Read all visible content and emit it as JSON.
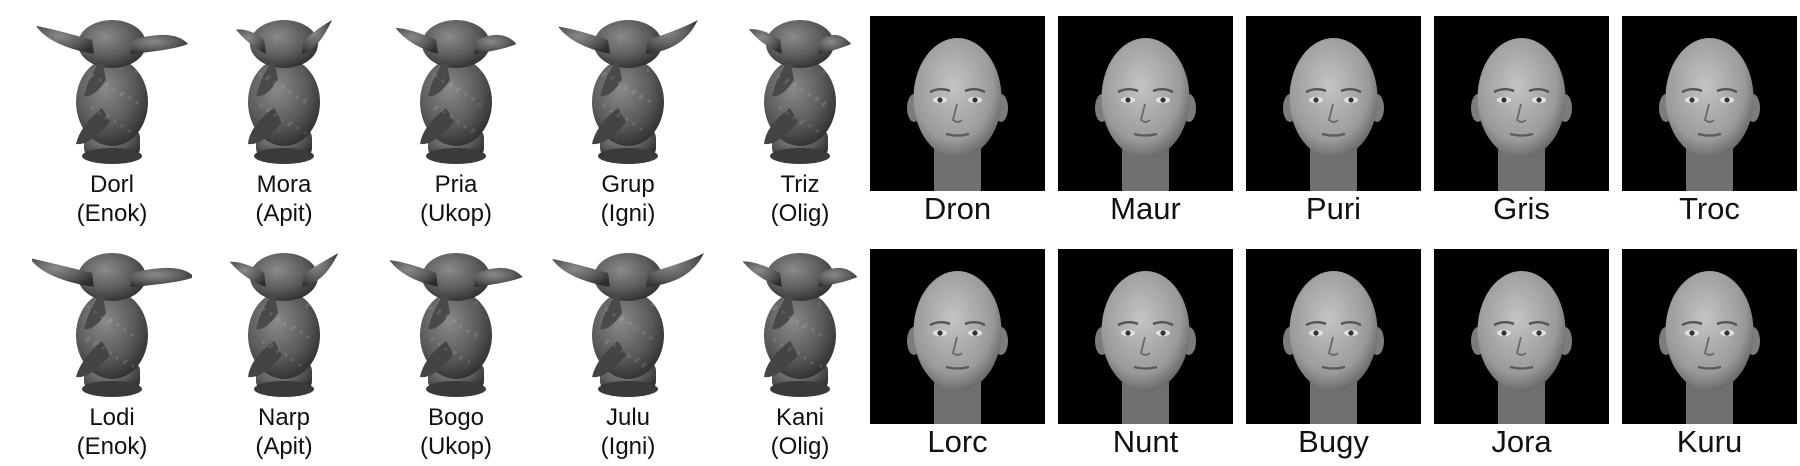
{
  "greebles": [
    {
      "name": "Dorl",
      "family": "(Enok)"
    },
    {
      "name": "Mora",
      "family": "(Apit)"
    },
    {
      "name": "Pria",
      "family": "(Ukop)"
    },
    {
      "name": "Grup",
      "family": "(Igni)"
    },
    {
      "name": "Triz",
      "family": "(Olig)"
    },
    {
      "name": "Lodi",
      "family": "(Enok)"
    },
    {
      "name": "Narp",
      "family": "(Apit)"
    },
    {
      "name": "Bogo",
      "family": "(Ukop)"
    },
    {
      "name": "Julu",
      "family": "(Igni)"
    },
    {
      "name": "Kani",
      "family": "(Olig)"
    }
  ],
  "faces": [
    {
      "name": "Dron"
    },
    {
      "name": "Maur"
    },
    {
      "name": "Puri"
    },
    {
      "name": "Gris"
    },
    {
      "name": "Troc"
    },
    {
      "name": "Lorc"
    },
    {
      "name": "Nunt"
    },
    {
      "name": "Bugy"
    },
    {
      "name": "Jora"
    },
    {
      "name": "Kuru"
    }
  ],
  "colors": {
    "background": "#ffffff",
    "greeble_fill": "#5a5a5a",
    "face_backdrop": "#000000",
    "skin": "#9a9a9a",
    "label_text": "#111111"
  }
}
